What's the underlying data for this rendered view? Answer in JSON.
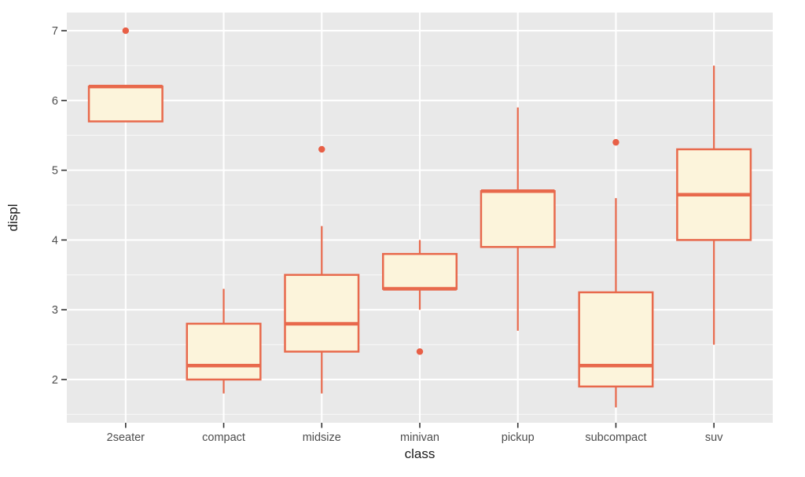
{
  "chart_data": {
    "type": "boxplot",
    "title": "",
    "xlabel": "class",
    "ylabel": "displ",
    "categories": [
      "2seater",
      "compact",
      "midsize",
      "minivan",
      "pickup",
      "subcompact",
      "suv"
    ],
    "series": [
      {
        "category": "2seater",
        "whisker_low": 5.7,
        "q1": 5.7,
        "median": 6.2,
        "q3": 6.2,
        "whisker_high": 6.2,
        "outliers": [
          7.0
        ]
      },
      {
        "category": "compact",
        "whisker_low": 1.8,
        "q1": 2.0,
        "median": 2.2,
        "q3": 2.8,
        "whisker_high": 3.3,
        "outliers": []
      },
      {
        "category": "midsize",
        "whisker_low": 1.8,
        "q1": 2.4,
        "median": 2.8,
        "q3": 3.5,
        "whisker_high": 4.2,
        "outliers": [
          5.3
        ]
      },
      {
        "category": "minivan",
        "whisker_low": 3.0,
        "q1": 3.3,
        "median": 3.3,
        "q3": 3.8,
        "whisker_high": 4.0,
        "outliers": [
          2.4
        ]
      },
      {
        "category": "pickup",
        "whisker_low": 2.7,
        "q1": 3.9,
        "median": 4.7,
        "q3": 4.7,
        "whisker_high": 5.9,
        "outliers": []
      },
      {
        "category": "subcompact",
        "whisker_low": 1.6,
        "q1": 1.9,
        "median": 2.2,
        "q3": 3.25,
        "whisker_high": 4.6,
        "outliers": [
          5.4
        ]
      },
      {
        "category": "suv",
        "whisker_low": 2.5,
        "q1": 4.0,
        "median": 4.65,
        "q3": 5.3,
        "whisker_high": 6.5,
        "outliers": []
      }
    ],
    "y_ticks": [
      2,
      3,
      4,
      5,
      6,
      7
    ],
    "y_minor_ticks": [
      1.5,
      2.5,
      3.5,
      4.5,
      5.5,
      6.5
    ],
    "ylim": [
      1.38,
      7.26
    ],
    "x_padding": 0.6,
    "box_width_frac": 0.75,
    "grid": true,
    "legend": "none",
    "colors": {
      "stroke": "#E8694C",
      "point": "#E85F46",
      "box_fill": "#FCF4DB",
      "panel_bg": "#E9E9E9",
      "grid_major": "#FFFFFF",
      "grid_minor": "#F5F5F5",
      "tick_mark": "#333333",
      "tick_label": "#4D4D4D",
      "axis_title": "#1A1A1A",
      "outer_bg": "#FFFFFF"
    }
  }
}
